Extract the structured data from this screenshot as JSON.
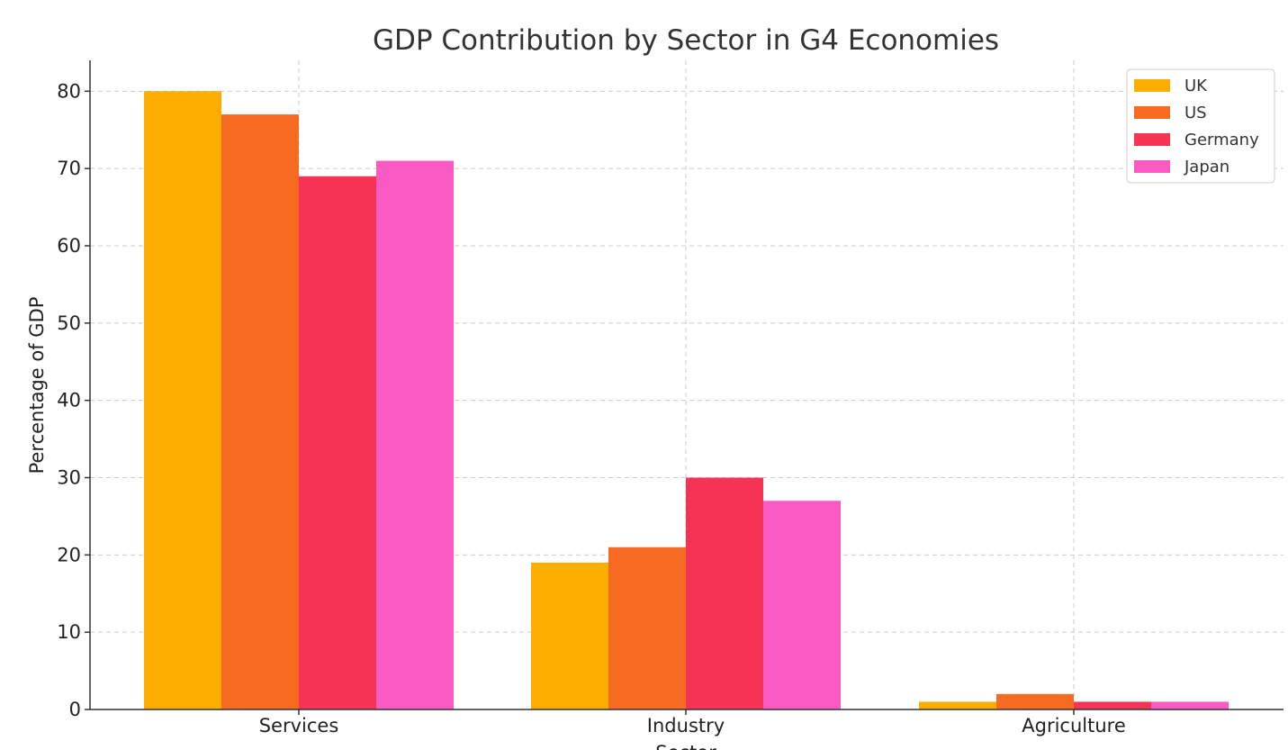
{
  "chart_data": {
    "type": "bar",
    "title": "GDP Contribution by Sector in G4 Economies",
    "xlabel": "Sector",
    "ylabel": "Percentage of GDP",
    "categories": [
      "Services",
      "Industry",
      "Agriculture"
    ],
    "series": [
      {
        "name": "UK",
        "color": "#fdac00",
        "values": [
          80,
          19,
          1
        ]
      },
      {
        "name": "US",
        "color": "#f66a22",
        "values": [
          77,
          21,
          2
        ]
      },
      {
        "name": "Germany",
        "color": "#f53355",
        "values": [
          69,
          30,
          1
        ]
      },
      {
        "name": "Japan",
        "color": "#f95bc3",
        "values": [
          71,
          27,
          1
        ]
      }
    ],
    "ylim": [
      0,
      84
    ],
    "yticks": [
      0,
      10,
      20,
      30,
      40,
      50,
      60,
      70,
      80
    ],
    "grid": true,
    "legend_position": "top-right"
  }
}
